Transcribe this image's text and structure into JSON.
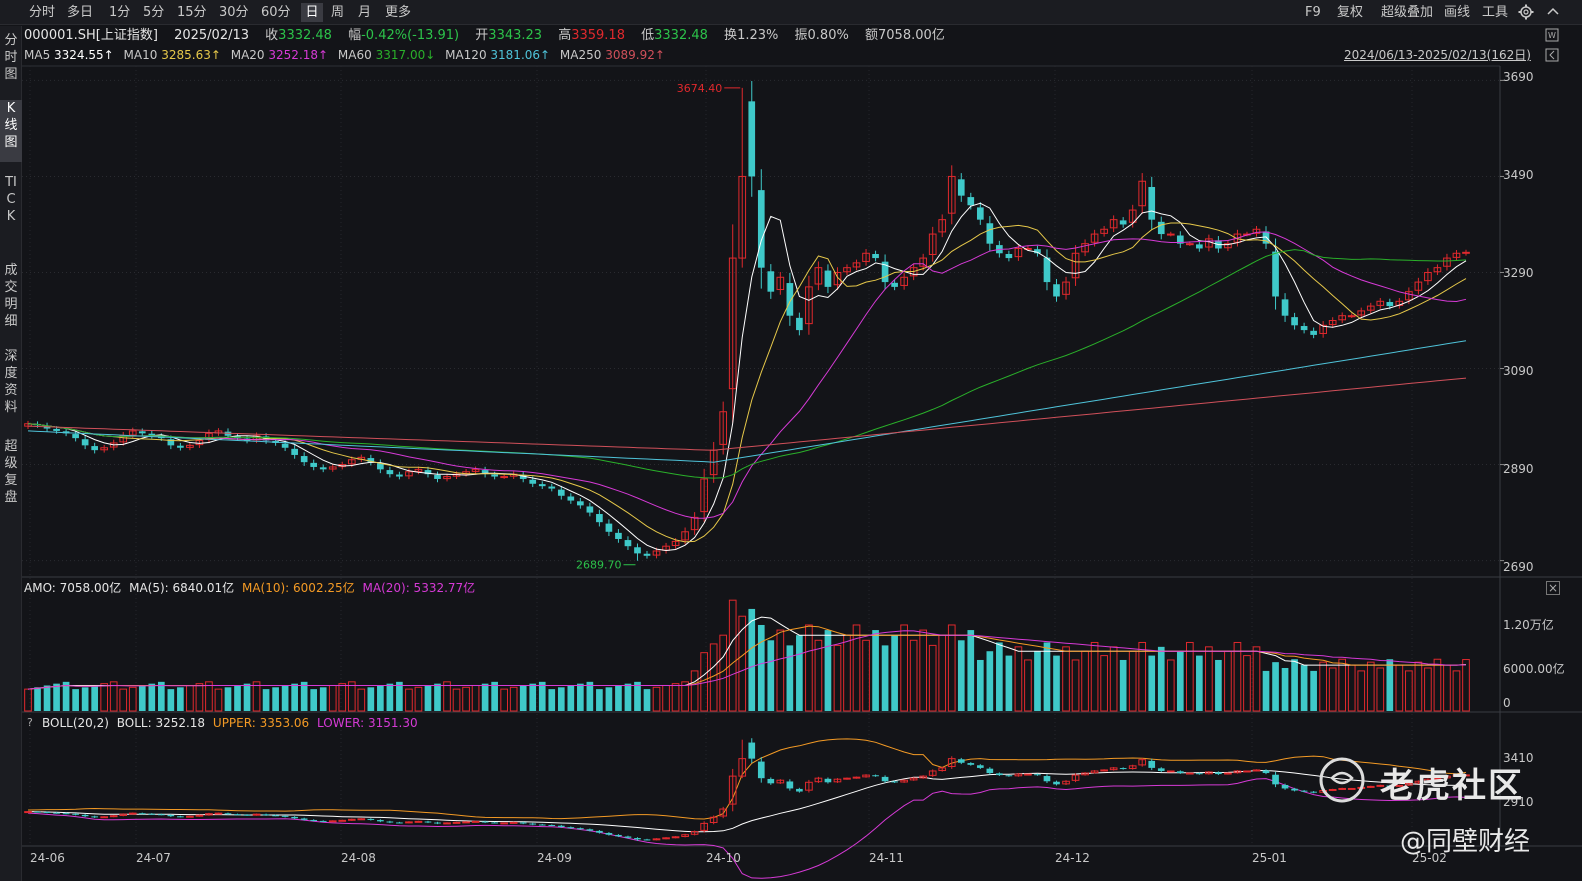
{
  "toolbar": {
    "periods": [
      "分时",
      "多日",
      "1分",
      "5分",
      "15分",
      "30分",
      "60分",
      "日",
      "周",
      "月",
      "更多"
    ],
    "active_period": "日",
    "right_tools": [
      "F9",
      "复权",
      "超级叠加",
      "画线",
      "工具"
    ]
  },
  "side_tabs": [
    "分时图",
    "K线图",
    "TICK",
    "成交明细",
    "深度资料",
    "超级复盘"
  ],
  "active_side_tab": "K线图",
  "quote": {
    "code": "000001.SH[上证指数]",
    "date": "2025/02/13",
    "close_label": "收",
    "close": "3332.48",
    "range_label": "幅",
    "range": "-0.42%(-13.91)",
    "open_label": "开",
    "open": "3343.23",
    "high_label": "高",
    "high": "3359.18",
    "low_label": "低",
    "low": "3332.48",
    "turnover_label": "换",
    "turnover": "1.23%",
    "amplitude_label": "振",
    "amplitude": "0.80%",
    "amount_label": "额",
    "amount": "7058.00亿"
  },
  "ma_legend": {
    "ma5_label": "MA5",
    "ma5": "3324.55↑",
    "ma10_label": "MA10",
    "ma10": "3285.63↑",
    "ma20_label": "MA20",
    "ma20": "3252.18↑",
    "ma60_label": "MA60",
    "ma60": "3317.00↓",
    "ma120_label": "MA120",
    "ma120": "3181.06↑",
    "ma250_label": "MA250",
    "ma250": "3089.92↑"
  },
  "date_range": "2024/06/13-2025/02/13(162日)",
  "amo_legend": {
    "amo": "AMO: 7058.00亿",
    "ma5": "MA(5): 6840.01亿",
    "ma10": "MA(10): 6002.25亿",
    "ma20": "MA(20): 5332.77亿"
  },
  "boll_legend": {
    "boll": "BOLL(20,2)",
    "mid": "BOLL: 3252.18",
    "upper": "UPPER: 3353.06",
    "lower": "LOWER: 3151.30"
  },
  "colors": {
    "up": "#e0292d",
    "down": "#3fc9c9",
    "ma5": "#ffffff",
    "ma10": "#e6c84a",
    "ma20": "#d63ad6",
    "ma60": "#2ab02a",
    "ma120": "#4fc3d9",
    "ma250": "#d0505a"
  },
  "watermark": {
    "brand": "老虎社区",
    "author": "@同壁财经"
  },
  "chart_data": {
    "type": "candlestick",
    "price_axis": {
      "ticks": [
        "3690",
        "3490",
        "3290",
        "3090",
        "2890",
        "2690"
      ],
      "range": [
        2660,
        3720
      ]
    },
    "volume_axis": {
      "ticks": [
        "1.20万亿",
        "6000.00亿",
        "0"
      ]
    },
    "boll_axis": {
      "ticks": [
        "3410",
        "2910"
      ]
    },
    "x_ticks": [
      "24-06",
      "24-07",
      "24-08",
      "24-09",
      "24-10",
      "24-11",
      "24-12",
      "25-01",
      "25-02"
    ],
    "annotations": {
      "high": "3674.40",
      "low": "2689.70"
    },
    "closes": [
      2975,
      2972,
      2965,
      2960,
      2955,
      2945,
      2930,
      2920,
      2925,
      2935,
      2950,
      2960,
      2955,
      2950,
      2945,
      2930,
      2925,
      2930,
      2940,
      2955,
      2960,
      2950,
      2945,
      2940,
      2950,
      2940,
      2935,
      2925,
      2910,
      2895,
      2885,
      2880,
      2885,
      2890,
      2900,
      2905,
      2895,
      2880,
      2870,
      2865,
      2875,
      2880,
      2870,
      2860,
      2865,
      2870,
      2875,
      2880,
      2870,
      2865,
      2865,
      2870,
      2860,
      2850,
      2845,
      2840,
      2825,
      2815,
      2805,
      2790,
      2770,
      2750,
      2735,
      2720,
      2705,
      2700,
      2710,
      2720,
      2730,
      2750,
      2780,
      2860,
      2920,
      3000,
      3320,
      3674,
      3490,
      3300,
      3250,
      3280,
      3200,
      3170,
      3260,
      3300,
      3260,
      3290,
      3300,
      3310,
      3330,
      3320,
      3270,
      3260,
      3280,
      3300,
      3320,
      3370,
      3400,
      3490,
      3450,
      3430,
      3400,
      3350,
      3330,
      3320,
      3340,
      3340,
      3330,
      3270,
      3240,
      3270,
      3330,
      3350,
      3370,
      3380,
      3400,
      3390,
      3420,
      3480,
      3400,
      3370,
      3370,
      3350,
      3350,
      3340,
      3360,
      3340,
      3350,
      3370,
      3370,
      3380,
      3350,
      3240,
      3200,
      3180,
      3170,
      3160,
      3180,
      3190,
      3200,
      3200,
      3210,
      3220,
      3230,
      3220,
      3230,
      3250,
      3270,
      3290,
      3300,
      3320,
      3330,
      3332
    ]
  }
}
